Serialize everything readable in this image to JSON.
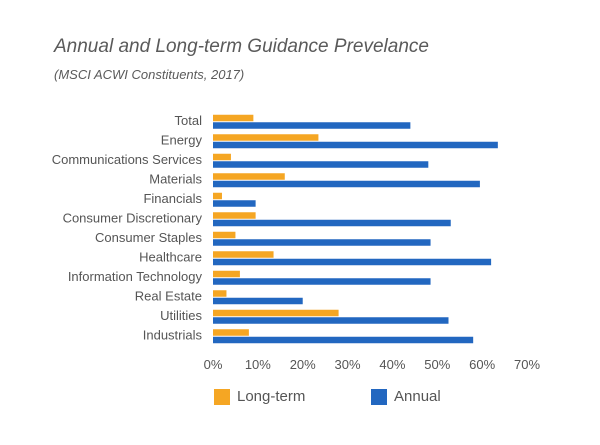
{
  "chart_data": {
    "type": "bar",
    "orientation": "horizontal",
    "title": "Annual and Long-term Guidance Prevelance",
    "subtitle": "(MSCI ACWI Constituents, 2017)",
    "categories": [
      "Total",
      "Energy",
      "Communications Services",
      "Materials",
      "Financials",
      "Consumer Discretionary",
      "Consumer Staples",
      "Healthcare",
      "Information Technology",
      "Real Estate",
      "Utilities",
      "Industrials"
    ],
    "series": [
      {
        "name": "Long-term",
        "color": "#f5a623",
        "values": [
          9,
          23.5,
          4,
          16,
          2,
          9.5,
          5,
          13.5,
          6,
          3,
          28,
          8
        ]
      },
      {
        "name": "Annual",
        "color": "#2267c0",
        "values": [
          44,
          63.5,
          48,
          59.5,
          9.5,
          53,
          48.5,
          62,
          48.5,
          20,
          52.5,
          58
        ]
      }
    ],
    "xlim": [
      0,
      70
    ],
    "xticks": [
      "0%",
      "10%",
      "20%",
      "30%",
      "40%",
      "50%",
      "60%",
      "70%"
    ],
    "grid": false,
    "legend_position": "bottom"
  }
}
